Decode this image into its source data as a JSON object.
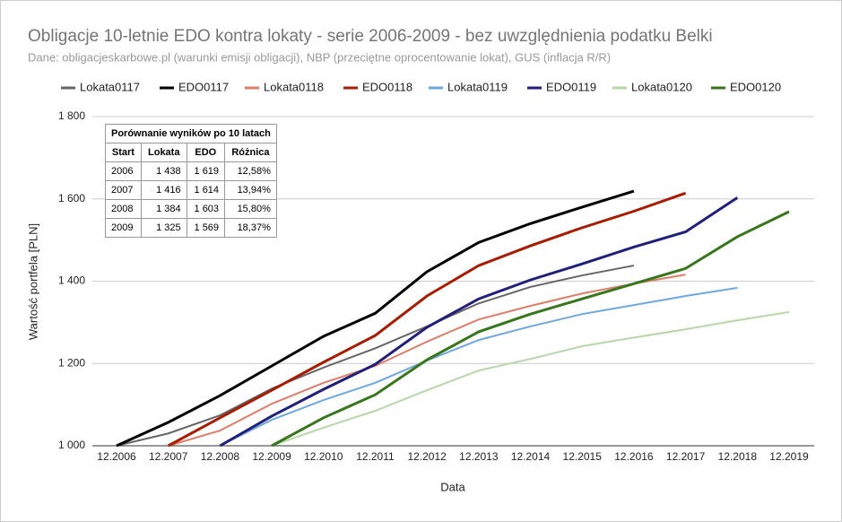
{
  "chart_data": {
    "type": "line",
    "title": "Obligacje 10-letnie EDO kontra lokaty - serie 2006-2009 - bez uwzględnienia podatku Belki",
    "subtitle": "Dane: obligacjeskarbowe.pl (warunki emisji obligacji), NBP (przeciętne oprocentowanie lokat), GUS (inflacja R/R)",
    "x_label": "Data",
    "y_label": "Wartość portfela [PLN]",
    "categories": [
      "12.2006",
      "12.2007",
      "12.2008",
      "12.2009",
      "12.2010",
      "12.2011",
      "12.2012",
      "12.2013",
      "12.2014",
      "12.2015",
      "12.2016",
      "12.2017",
      "12.2018",
      "12.2019"
    ],
    "ylim": [
      1000,
      1800
    ],
    "yticks": [
      {
        "value": 1000,
        "label": "1 000"
      },
      {
        "value": 1200,
        "label": "1 200"
      },
      {
        "value": 1400,
        "label": "1 400"
      },
      {
        "value": 1600,
        "label": "1 600"
      },
      {
        "value": 1800,
        "label": "1 800"
      }
    ],
    "grid": true,
    "legend": "top",
    "series": [
      {
        "name": "Lokata0117",
        "color": "#666666",
        "values": [
          1000,
          1030,
          1074,
          1139,
          1190,
          1237,
          1290,
          1346,
          1386,
          1414,
          1438,
          null,
          null,
          null
        ]
      },
      {
        "name": "EDO0117",
        "color": "#000000",
        "values": [
          1000,
          1057,
          1122,
          1194,
          1266,
          1322,
          1423,
          1494,
          1540,
          1580,
          1619,
          null,
          null,
          null
        ]
      },
      {
        "name": "Lokata0118",
        "color": "#dd7e6b",
        "values": [
          null,
          1000,
          1037,
          1102,
          1153,
          1194,
          1253,
          1307,
          1340,
          1370,
          1394,
          1416,
          null,
          null
        ]
      },
      {
        "name": "EDO0118",
        "color": "#a61c00",
        "values": [
          null,
          1000,
          1068,
          1135,
          1203,
          1268,
          1364,
          1438,
          1486,
          1530,
          1570,
          1614,
          null,
          null
        ]
      },
      {
        "name": "Lokata0119",
        "color": "#6fa8dc",
        "values": [
          null,
          null,
          1000,
          1063,
          1111,
          1153,
          1207,
          1257,
          1290,
          1320,
          1342,
          1364,
          1384,
          null
        ]
      },
      {
        "name": "EDO0119",
        "color": "#20207a",
        "values": [
          null,
          null,
          1000,
          1072,
          1137,
          1198,
          1288,
          1357,
          1403,
          1442,
          1483,
          1520,
          1603,
          null
        ]
      },
      {
        "name": "Lokata0120",
        "color": "#b6d7a8",
        "values": [
          null,
          null,
          null,
          1000,
          1044,
          1085,
          1135,
          1183,
          1211,
          1242,
          1263,
          1283,
          1305,
          1325
        ]
      },
      {
        "name": "EDO0120",
        "color": "#38761d",
        "values": [
          null,
          null,
          null,
          1000,
          1068,
          1124,
          1209,
          1277,
          1320,
          1357,
          1394,
          1431,
          1508,
          1569
        ]
      }
    ]
  },
  "table": {
    "title": "Porównanie wyników po 10 latach",
    "columns": [
      "Start",
      "Lokata",
      "EDO",
      "Różnica"
    ],
    "rows": [
      [
        "2006",
        "1 438",
        "1 619",
        "12,58%"
      ],
      [
        "2007",
        "1 416",
        "1 614",
        "13,94%"
      ],
      [
        "2008",
        "1 384",
        "1 603",
        "15,80%"
      ],
      [
        "2009",
        "1 325",
        "1 569",
        "18,37%"
      ]
    ]
  }
}
